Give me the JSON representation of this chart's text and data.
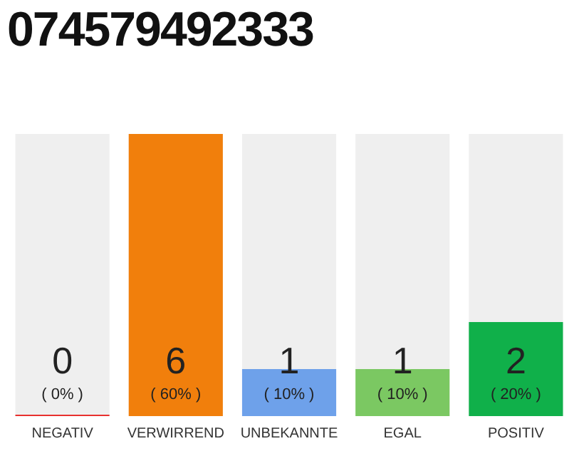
{
  "chart_data": {
    "type": "bar",
    "title": "074579492333",
    "categories": [
      "NEGATIV",
      "VERWIRREND",
      "UNBEKANNTE",
      "EGAL",
      "POSITIV"
    ],
    "values": [
      0,
      6,
      1,
      1,
      2
    ],
    "colors": [
      "#e8312f",
      "#f17f0c",
      "#6ea1ea",
      "#7bc862",
      "#10b04a"
    ],
    "value_labels": [
      "0\n( 0% )",
      "6\n( 60% )",
      "1\n( 10% )",
      "1\n( 10% )",
      "2\n( 20% )"
    ],
    "ylim": [
      0,
      6
    ],
    "grid": false,
    "legend": false
  }
}
